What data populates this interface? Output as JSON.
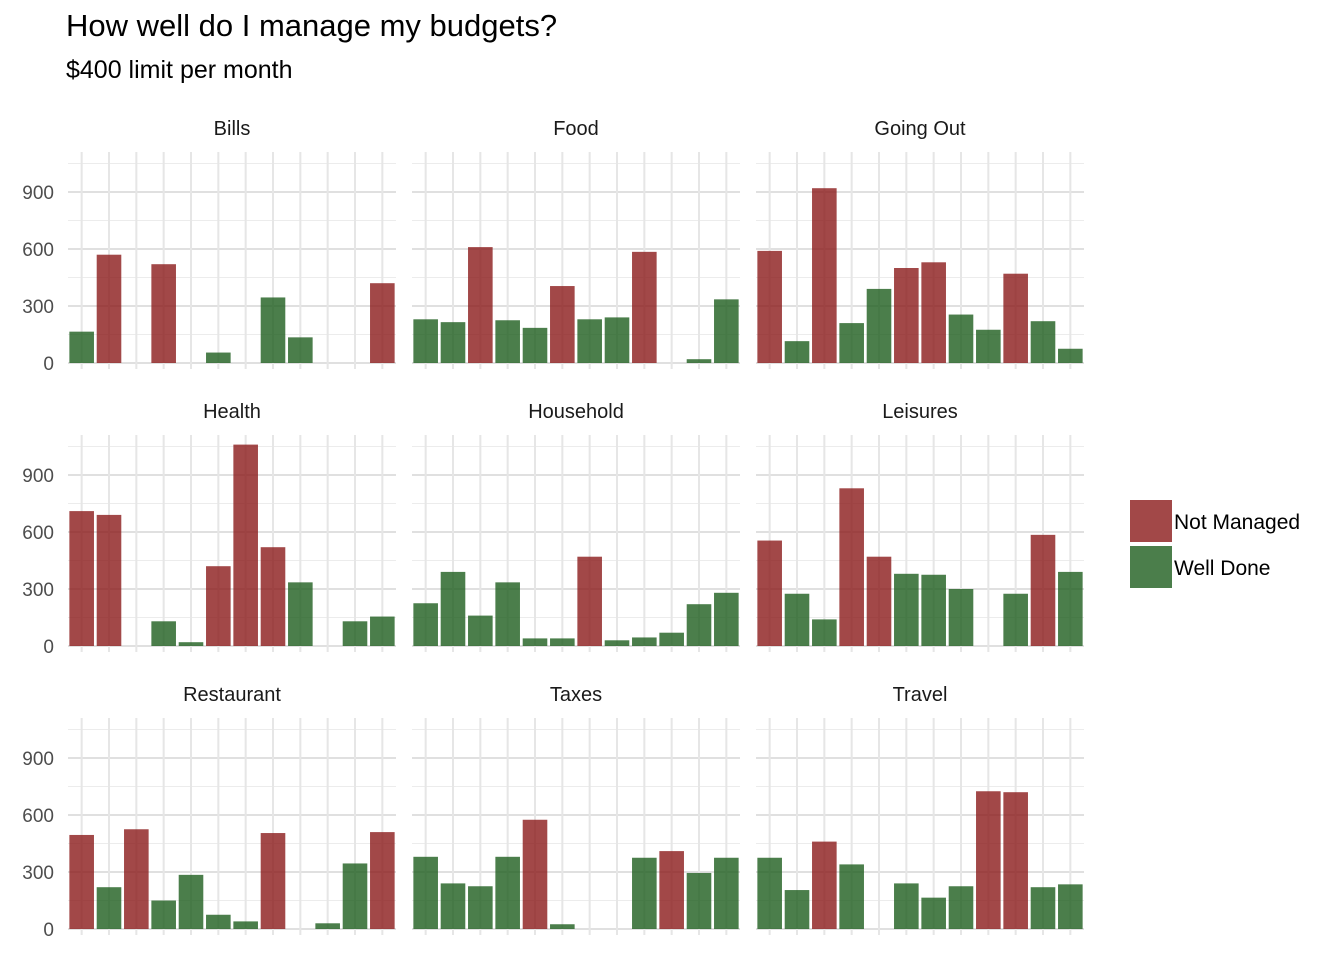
{
  "title": "How well do I manage my budgets?",
  "subtitle": "$400 limit per month",
  "colors": {
    "Not Managed": "#8b1a1a",
    "Well Done": "#1e5e1e"
  },
  "legend": [
    "Not Managed",
    "Well Done"
  ],
  "chart_data": {
    "type": "bar",
    "layout": "facet-grid 3x3",
    "ylim": [
      0,
      1100
    ],
    "yticks": [
      0,
      300,
      600,
      900
    ],
    "grid": true,
    "legend_position": "right",
    "fill_series": [
      "Not Managed",
      "Well Done"
    ],
    "facets": [
      {
        "name": "Bills",
        "values": [
          165,
          570,
          null,
          520,
          null,
          55,
          null,
          345,
          135,
          null,
          null,
          420
        ],
        "status": [
          "Well Done",
          "Not Managed",
          null,
          "Not Managed",
          null,
          "Well Done",
          null,
          "Well Done",
          "Well Done",
          null,
          null,
          "Not Managed"
        ]
      },
      {
        "name": "Food",
        "values": [
          230,
          215,
          610,
          225,
          185,
          405,
          230,
          240,
          585,
          null,
          20,
          335
        ],
        "status": [
          "Well Done",
          "Well Done",
          "Not Managed",
          "Well Done",
          "Well Done",
          "Not Managed",
          "Well Done",
          "Well Done",
          "Not Managed",
          null,
          "Well Done",
          "Well Done"
        ]
      },
      {
        "name": "Going Out",
        "values": [
          590,
          115,
          920,
          210,
          390,
          500,
          530,
          255,
          175,
          470,
          220,
          75
        ],
        "status": [
          "Not Managed",
          "Well Done",
          "Not Managed",
          "Well Done",
          "Well Done",
          "Not Managed",
          "Not Managed",
          "Well Done",
          "Well Done",
          "Not Managed",
          "Well Done",
          "Well Done"
        ]
      },
      {
        "name": "Health",
        "values": [
          710,
          690,
          null,
          130,
          20,
          420,
          1060,
          520,
          335,
          null,
          130,
          155
        ],
        "status": [
          "Not Managed",
          "Not Managed",
          null,
          "Well Done",
          "Well Done",
          "Not Managed",
          "Not Managed",
          "Not Managed",
          "Well Done",
          null,
          "Well Done",
          "Well Done"
        ]
      },
      {
        "name": "Household",
        "values": [
          225,
          390,
          160,
          335,
          40,
          40,
          470,
          30,
          45,
          70,
          220,
          280
        ],
        "status": [
          "Well Done",
          "Well Done",
          "Well Done",
          "Well Done",
          "Well Done",
          "Well Done",
          "Not Managed",
          "Well Done",
          "Well Done",
          "Well Done",
          "Well Done",
          "Well Done"
        ]
      },
      {
        "name": "Leisures",
        "values": [
          555,
          275,
          140,
          830,
          470,
          380,
          375,
          300,
          null,
          275,
          585,
          390
        ],
        "status": [
          "Not Managed",
          "Well Done",
          "Well Done",
          "Not Managed",
          "Not Managed",
          "Well Done",
          "Well Done",
          "Well Done",
          null,
          "Well Done",
          "Not Managed",
          "Well Done"
        ]
      },
      {
        "name": "Restaurant",
        "values": [
          495,
          220,
          525,
          150,
          285,
          75,
          40,
          505,
          null,
          30,
          345,
          510
        ],
        "status": [
          "Not Managed",
          "Well Done",
          "Not Managed",
          "Well Done",
          "Well Done",
          "Well Done",
          "Well Done",
          "Not Managed",
          null,
          "Well Done",
          "Well Done",
          "Not Managed"
        ]
      },
      {
        "name": "Taxes",
        "values": [
          380,
          240,
          225,
          380,
          575,
          25,
          null,
          null,
          375,
          410,
          295,
          375
        ],
        "status": [
          "Well Done",
          "Well Done",
          "Well Done",
          "Well Done",
          "Not Managed",
          "Well Done",
          null,
          null,
          "Well Done",
          "Not Managed",
          "Well Done",
          "Well Done"
        ]
      },
      {
        "name": "Travel",
        "values": [
          375,
          205,
          460,
          340,
          null,
          240,
          165,
          225,
          725,
          720,
          220,
          235
        ],
        "status": [
          "Well Done",
          "Well Done",
          "Not Managed",
          "Well Done",
          null,
          "Well Done",
          "Well Done",
          "Well Done",
          "Not Managed",
          "Not Managed",
          "Well Done",
          "Well Done"
        ]
      }
    ]
  }
}
